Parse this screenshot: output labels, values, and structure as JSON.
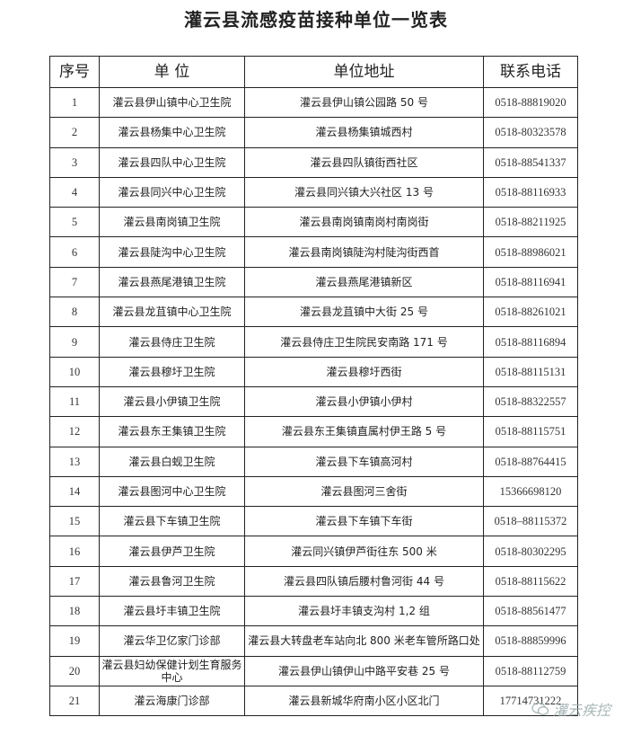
{
  "title": "灌云县流感疫苗接种单位一览表",
  "headers": [
    "序号",
    "单 位",
    "单位地址",
    "联系电话"
  ],
  "rows": [
    {
      "no": "1",
      "name": "灌云县伊山镇中心卫生院",
      "addr": "灌云县伊山镇公园路 50 号",
      "tel": "0518-88819020"
    },
    {
      "no": "2",
      "name": "灌云县杨集中心卫生院",
      "addr": "灌云县杨集镇城西村",
      "tel": "0518-80323578"
    },
    {
      "no": "3",
      "name": "灌云县四队中心卫生院",
      "addr": "灌云县四队镇街西社区",
      "tel": "0518-88541337"
    },
    {
      "no": "4",
      "name": "灌云县同兴中心卫生院",
      "addr": "灌云县同兴镇大兴社区 13 号",
      "tel": "0518-88116933"
    },
    {
      "no": "5",
      "name": "灌云县南岗镇卫生院",
      "addr": "灌云县南岗镇南岗村南岗街",
      "tel": "0518-88211925"
    },
    {
      "no": "6",
      "name": "灌云县陡沟中心卫生院",
      "addr": "灌云县南岗镇陡沟村陡沟街西首",
      "tel": "0518-88986021"
    },
    {
      "no": "7",
      "name": "灌云县燕尾港镇卫生院",
      "addr": "灌云县燕尾港镇新区",
      "tel": "0518-88116941"
    },
    {
      "no": "8",
      "name": "灌云县龙苴镇中心卫生院",
      "addr": "灌云县龙苴镇中大街 25 号",
      "tel": "0518-88261021"
    },
    {
      "no": "9",
      "name": "灌云县侍庄卫生院",
      "addr": "灌云县侍庄卫生院民安南路 171 号",
      "tel": "0518-88116894"
    },
    {
      "no": "10",
      "name": "灌云县穆圩卫生院",
      "addr": "灌云县穆圩西街",
      "tel": "0518-88115131"
    },
    {
      "no": "11",
      "name": "灌云县小伊镇卫生院",
      "addr": "灌云县小伊镇小伊村",
      "tel": "0518-88322557"
    },
    {
      "no": "12",
      "name": "灌云县东王集镇卫生院",
      "addr": "灌云县东王集镇直属村伊王路 5 号",
      "tel": "0518-88115751"
    },
    {
      "no": "13",
      "name": "灌云县白蚬卫生院",
      "addr": "灌云县下车镇高河村",
      "tel": "0518-88764415"
    },
    {
      "no": "14",
      "name": "灌云县图河中心卫生院",
      "addr": "灌云县图河三舍街",
      "tel": "15366698120"
    },
    {
      "no": "15",
      "name": "灌云县下车镇卫生院",
      "addr": "灌云县下车镇下车街",
      "tel": "0518–88115372"
    },
    {
      "no": "16",
      "name": "灌云县伊芦卫生院",
      "addr": "灌云同兴镇伊芦街往东 500 米",
      "tel": "0518-80302295"
    },
    {
      "no": "17",
      "name": "灌云县鲁河卫生院",
      "addr": "灌云县四队镇后腰村鲁河街 44 号",
      "tel": "0518-88115622"
    },
    {
      "no": "18",
      "name": "灌云县圩丰镇卫生院",
      "addr": "灌云县圩丰镇支沟村 1,2 组",
      "tel": "0518-88561477"
    },
    {
      "no": "19",
      "name": "灌云华卫亿家门诊部",
      "addr": "灌云县大转盘老车站向北 800 米老车管所路口处",
      "tel": "0518-88859996"
    },
    {
      "no": "20",
      "name": "灌云县妇幼保健计划生育服务中心",
      "addr": "灌云县伊山镇伊山中路平安巷 25 号",
      "tel": "0518-88112759"
    },
    {
      "no": "21",
      "name": "灌云海康门诊部",
      "addr": "灌云县新城华府南小区小区北门",
      "tel": "17714731222"
    }
  ],
  "watermark": {
    "text": "灌云疾控",
    "icon": "wechat-icon",
    "color": "#99aaaa"
  }
}
